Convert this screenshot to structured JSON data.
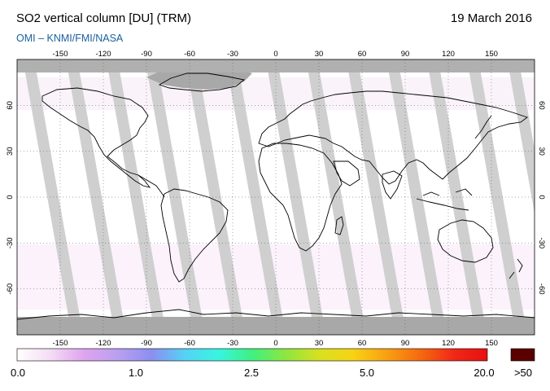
{
  "header": {
    "title": "SO2 vertical column [DU] (TRM)",
    "date": "19 March 2016",
    "source": "OMI  –  KNMI/FMI/NASA"
  },
  "map": {
    "projection": "equirectangular",
    "lon_range": [
      -180,
      180
    ],
    "lat_range": [
      -90,
      90
    ],
    "lon_ticks": [
      "-150",
      "-120",
      "-90",
      "-60",
      "-30",
      "0",
      "30",
      "60",
      "90",
      "120",
      "150"
    ],
    "lat_ticks": [
      "60",
      "30",
      "0",
      "-30",
      "-60"
    ],
    "gridlines": "dotted",
    "coverage_swaths": "light gray diagonal data-gap stripes",
    "polar_no_data": "gray"
  },
  "colorbar": {
    "ticks": [
      "0.0",
      "1.0",
      "2.5",
      "5.0",
      "20.0"
    ],
    "overflow_label": ">50",
    "overflow_color": "#5a0000",
    "gradient": [
      "#ffffff",
      "#f5dcf5",
      "#dfa3ef",
      "#b9a0f0",
      "#8c8ef0",
      "#55d2f5",
      "#38f5e0",
      "#40f080",
      "#8ee640",
      "#d8e020",
      "#f7d314",
      "#f8a012",
      "#f56a10",
      "#f02818",
      "#e81010"
    ]
  },
  "colors": {
    "swath": "#cfcfcf",
    "land_gap": "#a5a5a5",
    "no_data": "#a8a8a8",
    "coastline": "#000000",
    "source_text": "#1a5f9c"
  }
}
